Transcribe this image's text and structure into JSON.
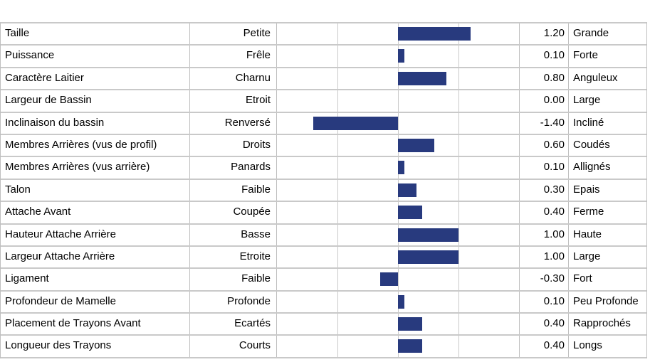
{
  "colors": {
    "bar": "#283a7e",
    "grid": "#c9c9c9",
    "border": "#bfbfbf",
    "text": "#000000",
    "background": "#ffffff"
  },
  "chart_data": {
    "type": "bar",
    "orientation": "horizontal",
    "title": "",
    "grid": true,
    "legend": false,
    "axis": {
      "min": -2,
      "max": 2,
      "gridline_step": 1
    },
    "columns": [
      "trait",
      "left_pole",
      "bar",
      "value",
      "right_pole"
    ],
    "rows": [
      {
        "name": "Taille",
        "left": "Petite",
        "value": 1.2,
        "value_label": "1.20",
        "right": "Grande"
      },
      {
        "name": "Puissance",
        "left": "Frêle",
        "value": 0.1,
        "value_label": "0.10",
        "right": "Forte"
      },
      {
        "name": "Caractère Laitier",
        "left": "Charnu",
        "value": 0.8,
        "value_label": "0.80",
        "right": "Anguleux"
      },
      {
        "name": "Largeur de Bassin",
        "left": "Etroit",
        "value": 0.0,
        "value_label": "0.00",
        "right": "Large"
      },
      {
        "name": "Inclinaison du bassin",
        "left": "Renversé",
        "value": -1.4,
        "value_label": "-1.40",
        "right": "Incliné"
      },
      {
        "name": "Membres Arrières (vus de profil)",
        "left": "Droits",
        "value": 0.6,
        "value_label": "0.60",
        "right": "Coudés"
      },
      {
        "name": "Membres Arrières (vus arrière)",
        "left": "Panards",
        "value": 0.1,
        "value_label": "0.10",
        "right": "Allignés"
      },
      {
        "name": "Talon",
        "left": "Faible",
        "value": 0.3,
        "value_label": "0.30",
        "right": "Epais"
      },
      {
        "name": "Attache Avant",
        "left": "Coupée",
        "value": 0.4,
        "value_label": "0.40",
        "right": "Ferme"
      },
      {
        "name": "Hauteur Attache Arrière",
        "left": "Basse",
        "value": 1.0,
        "value_label": "1.00",
        "right": "Haute"
      },
      {
        "name": "Largeur Attache Arrière",
        "left": "Etroite",
        "value": 1.0,
        "value_label": "1.00",
        "right": "Large"
      },
      {
        "name": "Ligament",
        "left": "Faible",
        "value": -0.3,
        "value_label": "-0.30",
        "right": "Fort"
      },
      {
        "name": "Profondeur de Mamelle",
        "left": "Profonde",
        "value": 0.1,
        "value_label": "0.10",
        "right": "Peu Profonde"
      },
      {
        "name": "Placement de Trayons Avant",
        "left": "Ecartés",
        "value": 0.4,
        "value_label": "0.40",
        "right": "Rapprochés"
      },
      {
        "name": "Longueur des Trayons",
        "left": "Courts",
        "value": 0.4,
        "value_label": "0.40",
        "right": "Longs"
      }
    ]
  }
}
